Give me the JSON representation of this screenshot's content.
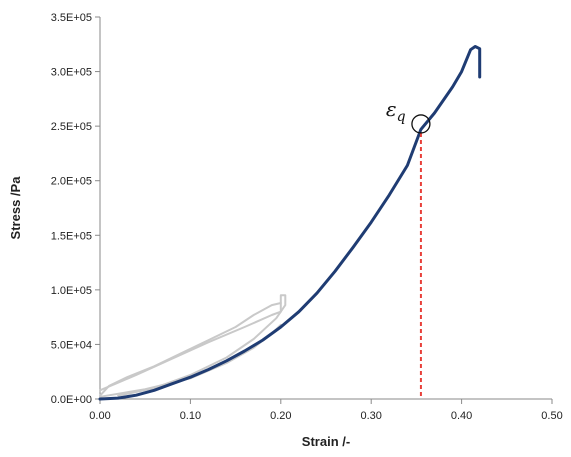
{
  "chart_data": {
    "type": "line",
    "xlabel": "Strain /-",
    "ylabel": "Stress /Pa",
    "xlim": [
      0,
      0.5
    ],
    "ylim": [
      0,
      350000
    ],
    "x_ticks": [
      0,
      0.1,
      0.2,
      0.3,
      0.4,
      0.5
    ],
    "x_tick_labels": [
      "0.00",
      "0.10",
      "0.20",
      "0.30",
      "0.40",
      "0.50"
    ],
    "y_ticks": [
      0,
      50000,
      100000,
      150000,
      200000,
      250000,
      300000,
      350000
    ],
    "y_tick_labels": [
      "0.0E+00",
      "5.0E+04",
      "1.0E+05",
      "1.5E+05",
      "2.0E+05",
      "2.5E+05",
      "3.0E+05",
      "3.5E+05"
    ],
    "grid": false,
    "series": [
      {
        "color": "#1f3c73",
        "points": [
          [
            0.0,
            0
          ],
          [
            0.02,
            800
          ],
          [
            0.04,
            3500
          ],
          [
            0.06,
            8000
          ],
          [
            0.08,
            14000
          ],
          [
            0.1,
            20000
          ],
          [
            0.12,
            27000
          ],
          [
            0.14,
            35000
          ],
          [
            0.16,
            44000
          ],
          [
            0.18,
            54000
          ],
          [
            0.2,
            66000
          ],
          [
            0.22,
            80000
          ],
          [
            0.24,
            97000
          ],
          [
            0.26,
            117000
          ],
          [
            0.28,
            139000
          ],
          [
            0.3,
            162000
          ],
          [
            0.32,
            187000
          ],
          [
            0.34,
            214000
          ],
          [
            0.355,
            247000
          ],
          [
            0.37,
            262000
          ],
          [
            0.39,
            286000
          ],
          [
            0.4,
            300000
          ],
          [
            0.41,
            320000
          ],
          [
            0.415,
            323000
          ],
          [
            0.42,
            321000
          ],
          [
            0.42,
            295000
          ]
        ]
      },
      {
        "color": "#c9c9c9",
        "points": [
          [
            0.0,
            3000
          ],
          [
            0.01,
            12000
          ],
          [
            0.03,
            20000
          ],
          [
            0.06,
            30000
          ],
          [
            0.09,
            42000
          ],
          [
            0.12,
            54000
          ],
          [
            0.15,
            66000
          ],
          [
            0.17,
            77000
          ],
          [
            0.19,
            86000
          ],
          [
            0.2,
            88000
          ],
          [
            0.2,
            95000
          ],
          [
            0.205,
            95000
          ],
          [
            0.205,
            86000
          ],
          [
            0.195,
            74000
          ],
          [
            0.17,
            55000
          ],
          [
            0.14,
            38000
          ],
          [
            0.1,
            22000
          ],
          [
            0.06,
            10000
          ],
          [
            0.02,
            3000
          ]
        ]
      },
      {
        "color": "#c9c9c9",
        "points": [
          [
            0.0,
            8000
          ],
          [
            0.04,
            22000
          ],
          [
            0.08,
            37000
          ],
          [
            0.12,
            52000
          ],
          [
            0.16,
            66000
          ],
          [
            0.19,
            77000
          ],
          [
            0.2,
            80000
          ],
          [
            0.2,
            88000
          ]
        ]
      },
      {
        "color": "#c9c9c9",
        "points": [
          [
            0.0,
            2000
          ],
          [
            0.05,
            9000
          ],
          [
            0.1,
            19000
          ],
          [
            0.14,
            33000
          ],
          [
            0.17,
            47000
          ],
          [
            0.19,
            60000
          ],
          [
            0.2,
            68000
          ]
        ]
      }
    ],
    "annotations": [
      {
        "label": "εq",
        "base": "ε",
        "subscript": "q",
        "x": 0.355,
        "y": 252000,
        "marker": "circle",
        "dropline_color": "#e8403a"
      }
    ],
    "colors": {
      "axis": "#8a8a8a",
      "text": "#222222",
      "main_curve": "#1f3c73",
      "loop_curve": "#c9c9c9",
      "dropline": "#e8403a"
    }
  }
}
